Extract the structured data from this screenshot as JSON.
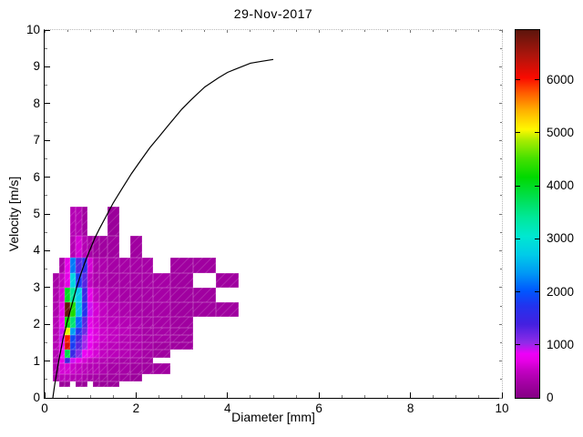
{
  "title": "29-Nov-2017",
  "axes": {
    "xlabel": "Diameter [mm]",
    "ylabel": "Velocity [m/s]",
    "xlim": [
      0,
      10
    ],
    "ylim": [
      0,
      10
    ],
    "xticks": [
      0,
      2,
      4,
      6,
      8,
      10
    ],
    "yticks": [
      0,
      1,
      2,
      3,
      4,
      5,
      6,
      7,
      8,
      9,
      10
    ],
    "x_minor_step": 0.5,
    "y_minor_step": 0.5
  },
  "colorbar": {
    "ticks": [
      0,
      1000,
      2000,
      3000,
      4000,
      5000,
      6000
    ],
    "vmin": 0,
    "vmax": 6940,
    "stops": [
      [
        0.0,
        "#830083"
      ],
      [
        0.04,
        "#A300A3"
      ],
      [
        0.075,
        "#C400C4"
      ],
      [
        0.1,
        "#E600E6"
      ],
      [
        0.12,
        "#EE00F8"
      ],
      [
        0.15,
        "#8F2BE8"
      ],
      [
        0.2,
        "#4420E0"
      ],
      [
        0.25,
        "#2233EE"
      ],
      [
        0.29,
        "#0055FF"
      ],
      [
        0.34,
        "#0099F5"
      ],
      [
        0.39,
        "#00CCE8"
      ],
      [
        0.44,
        "#00E8D0"
      ],
      [
        0.49,
        "#00E89A"
      ],
      [
        0.54,
        "#00E055"
      ],
      [
        0.6,
        "#00D900"
      ],
      [
        0.65,
        "#44E000"
      ],
      [
        0.7,
        "#A8EC00"
      ],
      [
        0.73,
        "#FFF800"
      ],
      [
        0.78,
        "#FFB300"
      ],
      [
        0.83,
        "#FF5A00"
      ],
      [
        0.87,
        "#FA0A00"
      ],
      [
        0.93,
        "#AE150C"
      ],
      [
        1.0,
        "#5C150C"
      ]
    ]
  },
  "chart_data": {
    "type": "heatmap",
    "title": "29-Nov-2017",
    "xlabel": "Diameter [mm]",
    "ylabel": "Velocity [m/s]",
    "xlim": [
      0,
      10
    ],
    "ylim": [
      0,
      10
    ],
    "grid": false,
    "colorbar_range": [
      0,
      6940
    ],
    "d_edges": [
      0.187,
      0.312,
      0.437,
      0.562,
      0.687,
      0.812,
      0.937,
      1.062,
      1.187,
      1.375,
      1.625,
      1.875,
      2.125,
      2.375,
      2.75,
      3.25,
      3.75,
      4.25
    ],
    "v_edges": [
      0.3,
      0.45,
      0.65,
      0.95,
      1.1,
      1.3,
      1.5,
      1.7,
      1.9,
      2.2,
      2.6,
      3.0,
      3.4,
      3.8,
      4.4,
      5.2
    ],
    "counts_rows_bottom_to_top": [
      [
        0,
        200,
        200,
        0,
        200,
        200,
        0,
        200,
        200,
        200,
        0,
        0,
        0,
        0,
        0,
        0,
        0
      ],
      [
        300,
        450,
        450,
        400,
        400,
        350,
        300,
        300,
        250,
        250,
        250,
        200,
        0,
        0,
        0,
        0,
        0
      ],
      [
        350,
        600,
        600,
        550,
        500,
        450,
        400,
        400,
        350,
        300,
        300,
        250,
        250,
        250,
        0,
        0,
        0
      ],
      [
        350,
        700,
        1400,
        900,
        700,
        600,
        500,
        450,
        400,
        350,
        300,
        300,
        250,
        0,
        0,
        0,
        0
      ],
      [
        400,
        800,
        3800,
        1500,
        1100,
        800,
        700,
        600,
        500,
        450,
        400,
        350,
        300,
        250,
        0,
        0,
        0
      ],
      [
        400,
        800,
        6200,
        1800,
        1300,
        1000,
        750,
        600,
        500,
        450,
        400,
        350,
        300,
        250,
        250,
        0,
        0
      ],
      [
        400,
        900,
        6000,
        1900,
        1400,
        1000,
        800,
        650,
        550,
        500,
        400,
        350,
        300,
        300,
        250,
        0,
        0
      ],
      [
        400,
        900,
        5000,
        2400,
        1700,
        1200,
        800,
        650,
        550,
        500,
        450,
        350,
        300,
        300,
        250,
        0,
        0
      ],
      [
        400,
        800,
        4200,
        3600,
        2100,
        1300,
        700,
        600,
        500,
        450,
        400,
        350,
        300,
        300,
        250,
        0,
        0
      ],
      [
        350,
        700,
        6900,
        4300,
        2600,
        1700,
        900,
        600,
        500,
        400,
        350,
        300,
        300,
        300,
        250,
        250,
        250
      ],
      [
        350,
        600,
        4000,
        3400,
        2700,
        1500,
        700,
        500,
        400,
        350,
        300,
        300,
        300,
        300,
        250,
        250,
        0
      ],
      [
        300,
        500,
        700,
        2800,
        1800,
        1300,
        500,
        350,
        350,
        300,
        300,
        300,
        300,
        300,
        250,
        0,
        250
      ],
      [
        0,
        300,
        700,
        2200,
        1300,
        1600,
        600,
        350,
        350,
        300,
        300,
        300,
        300,
        0,
        250,
        250,
        0
      ],
      [
        0,
        0,
        0,
        400,
        600,
        400,
        300,
        250,
        250,
        250,
        0,
        250,
        0,
        0,
        0,
        0,
        0
      ],
      [
        0,
        0,
        0,
        400,
        400,
        250,
        0,
        0,
        0,
        200,
        0,
        0,
        0,
        0,
        0,
        0,
        0
      ]
    ],
    "curve": {
      "name": "terminal-velocity-curve",
      "points": [
        [
          0.18,
          0
        ],
        [
          0.22,
          0.35
        ],
        [
          0.3,
          0.95
        ],
        [
          0.4,
          1.6
        ],
        [
          0.5,
          2.1
        ],
        [
          0.6,
          2.55
        ],
        [
          0.7,
          3.0
        ],
        [
          0.8,
          3.4
        ],
        [
          0.9,
          3.75
        ],
        [
          1.0,
          4.05
        ],
        [
          1.1,
          4.35
        ],
        [
          1.2,
          4.6
        ],
        [
          1.35,
          4.95
        ],
        [
          1.5,
          5.3
        ],
        [
          1.7,
          5.7
        ],
        [
          1.9,
          6.1
        ],
        [
          2.1,
          6.45
        ],
        [
          2.3,
          6.8
        ],
        [
          2.5,
          7.1
        ],
        [
          2.7,
          7.4
        ],
        [
          3.0,
          7.85
        ],
        [
          3.2,
          8.1
        ],
        [
          3.5,
          8.45
        ],
        [
          3.8,
          8.7
        ],
        [
          4.0,
          8.85
        ],
        [
          4.2,
          8.95
        ],
        [
          4.5,
          9.1
        ],
        [
          4.75,
          9.15
        ],
        [
          5.0,
          9.2
        ]
      ]
    }
  },
  "colors": {
    "background": "#ffffff",
    "axis": "#000000",
    "curve": "#000000"
  }
}
